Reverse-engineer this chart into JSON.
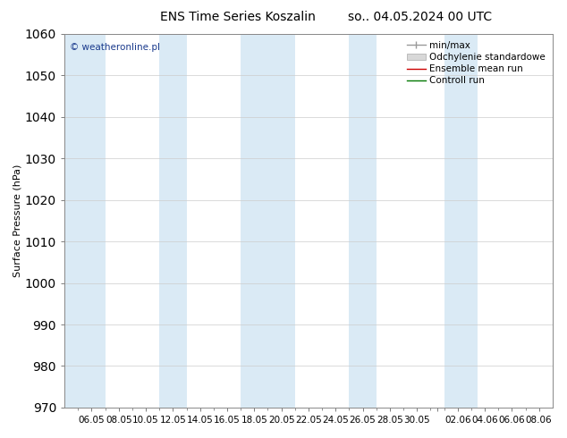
{
  "title_left": "ENS Time Series Koszalin",
  "title_right": "so.. 04.05.2024 00 UTC",
  "ylabel": "Surface Pressure (hPa)",
  "ylim": [
    970,
    1060
  ],
  "yticks": [
    970,
    980,
    990,
    1000,
    1010,
    1020,
    1030,
    1040,
    1050,
    1060
  ],
  "x_tick_labels": [
    "06.05",
    "08.05",
    "10.05",
    "12.05",
    "14.05",
    "16.05",
    "18.05",
    "20.05",
    "22.05",
    "24.05",
    "26.05",
    "28.05",
    "30.05",
    "",
    "02.06",
    "04.06",
    "06.06",
    "08.06"
  ],
  "watermark": "© weatheronline.pl",
  "legend_entries": [
    "min/max",
    "Odchylenie standardowe",
    "Ensemble mean run",
    "Controll run"
  ],
  "bg_color": "#ffffff",
  "band_color": "#daeaf5",
  "title_fontsize": 10,
  "axis_label_fontsize": 8,
  "tick_fontsize": 7.5,
  "legend_fontsize": 7.5
}
